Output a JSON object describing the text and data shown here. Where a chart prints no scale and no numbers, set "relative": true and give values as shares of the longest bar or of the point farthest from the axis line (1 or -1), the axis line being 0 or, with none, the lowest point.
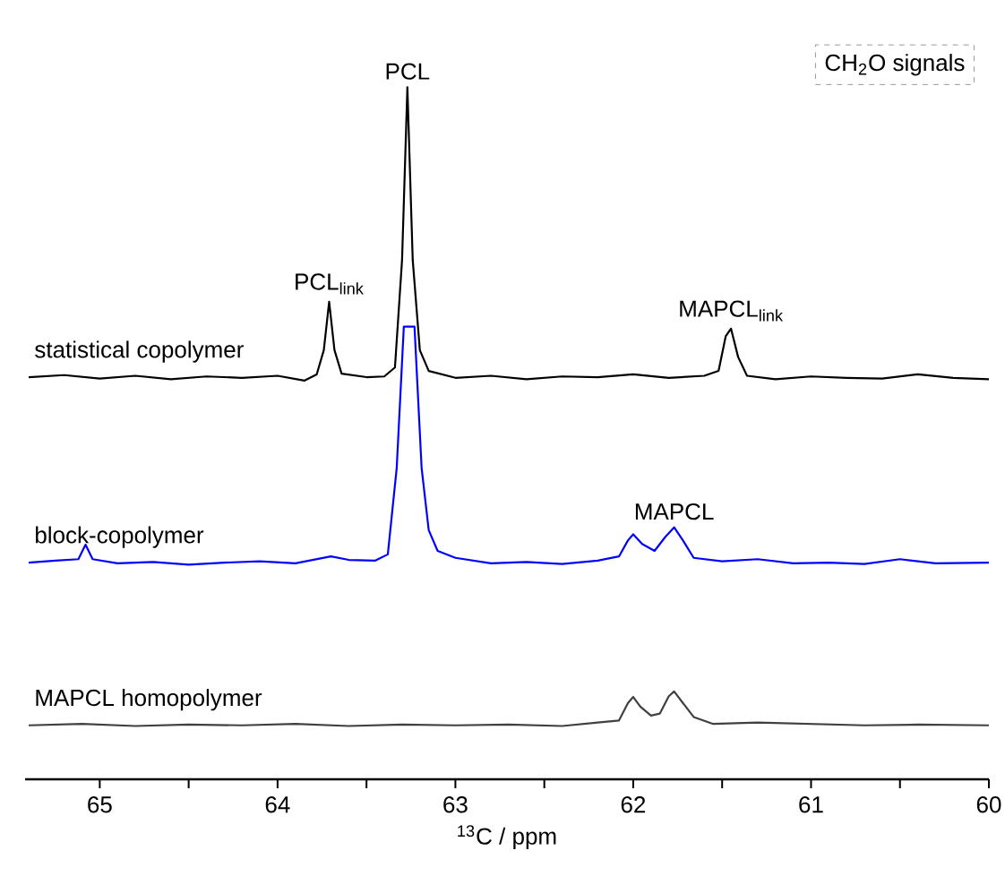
{
  "chart_data": {
    "type": "line",
    "relative": true,
    "xlabel": "$^{13}$C / ppm",
    "xlim": [
      65.42,
      60
    ],
    "xticks": [
      65,
      {
        "value": 64.5,
        "label": null
      },
      64,
      {
        "value": 63.5,
        "label": null
      },
      63,
      {
        "value": 62.5,
        "label": null
      },
      62,
      {
        "value": 61.5,
        "label": null
      },
      61,
      {
        "value": 60.5,
        "label": null
      },
      60
    ],
    "annotations": [
      {
        "text": "PCL",
        "x": 63.27,
        "y": 1.0
      },
      {
        "text": "PCL$_{link}$",
        "x": 63.71,
        "y": 0.69
      },
      {
        "text": "MAPCL$_{link}$",
        "x": 61.45,
        "y": 0.651
      },
      {
        "text": "MAPCL",
        "x": 61.77,
        "y": 0.364
      },
      "CH$_{2}$O signals"
    ],
    "series": [
      {
        "name": "statistical copolymer",
        "color": "#000000",
        "x": [
          65.4,
          65.2,
          65.0,
          64.8,
          64.6,
          64.4,
          64.2,
          64.0,
          63.85,
          63.78,
          63.74,
          63.71,
          63.68,
          63.64,
          63.5,
          63.4,
          63.34,
          63.3,
          63.27,
          63.24,
          63.2,
          63.15,
          63.0,
          62.8,
          62.6,
          62.4,
          62.2,
          62.0,
          61.8,
          61.6,
          61.52,
          61.48,
          61.45,
          61.41,
          61.36,
          61.2,
          61.0,
          60.8,
          60.6,
          60.4,
          60.2,
          60.0
        ],
        "values": [
          0.581,
          0.584,
          0.579,
          0.583,
          0.578,
          0.582,
          0.58,
          0.583,
          0.576,
          0.585,
          0.62,
          0.69,
          0.62,
          0.586,
          0.581,
          0.582,
          0.595,
          0.75,
          1.0,
          0.75,
          0.62,
          0.59,
          0.58,
          0.583,
          0.578,
          0.582,
          0.581,
          0.585,
          0.58,
          0.583,
          0.59,
          0.64,
          0.651,
          0.61,
          0.583,
          0.578,
          0.582,
          0.58,
          0.579,
          0.585,
          0.58,
          0.578
        ]
      },
      {
        "name": "block-copolymer",
        "color": "#0000ff",
        "x": [
          65.4,
          65.25,
          65.12,
          65.08,
          65.04,
          64.9,
          64.7,
          64.5,
          64.3,
          64.1,
          63.9,
          63.7,
          63.6,
          63.45,
          63.38,
          63.33,
          63.29,
          63.23,
          63.19,
          63.15,
          63.1,
          63.0,
          62.8,
          62.6,
          62.4,
          62.2,
          62.08,
          62.03,
          62.0,
          61.95,
          61.88,
          61.82,
          61.77,
          61.72,
          61.66,
          61.5,
          61.3,
          61.1,
          60.9,
          60.7,
          60.5,
          60.3,
          60.0
        ],
        "values": [
          0.313,
          0.316,
          0.318,
          0.339,
          0.318,
          0.312,
          0.314,
          0.31,
          0.313,
          0.315,
          0.312,
          0.322,
          0.317,
          0.316,
          0.325,
          0.45,
          0.654,
          0.654,
          0.45,
          0.36,
          0.33,
          0.32,
          0.312,
          0.314,
          0.311,
          0.316,
          0.322,
          0.345,
          0.354,
          0.34,
          0.33,
          0.35,
          0.364,
          0.345,
          0.32,
          0.315,
          0.318,
          0.312,
          0.313,
          0.311,
          0.318,
          0.312,
          0.313
        ]
      },
      {
        "name": "MAPCL homopolymer",
        "color": "#404040",
        "x": [
          65.4,
          65.1,
          64.8,
          64.5,
          64.2,
          63.9,
          63.6,
          63.3,
          63.0,
          62.7,
          62.4,
          62.2,
          62.08,
          62.03,
          62.0,
          61.96,
          61.9,
          61.85,
          61.8,
          61.77,
          61.72,
          61.66,
          61.55,
          61.3,
          61.0,
          60.7,
          60.4,
          60.0
        ],
        "values": [
          0.078,
          0.08,
          0.077,
          0.079,
          0.078,
          0.08,
          0.077,
          0.079,
          0.078,
          0.079,
          0.077,
          0.082,
          0.085,
          0.11,
          0.119,
          0.105,
          0.092,
          0.095,
          0.12,
          0.127,
          0.11,
          0.09,
          0.08,
          0.082,
          0.08,
          0.078,
          0.079,
          0.078
        ]
      }
    ]
  }
}
